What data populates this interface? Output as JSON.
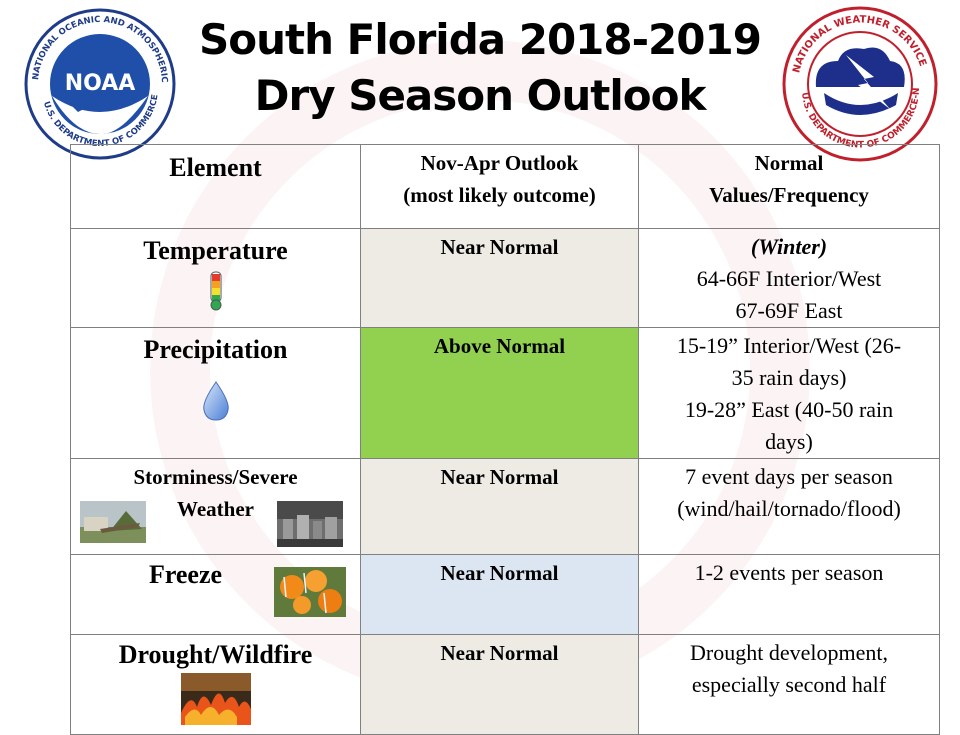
{
  "header": {
    "title_line1": "South Florida 2018-2019",
    "title_line2": "Dry Season Outlook"
  },
  "logos": {
    "left": {
      "icon": "noaa-logo-icon",
      "text": "NATIONAL OCEANIC AND ATMOSPHERIC ADMINISTRATION · U.S. DEPARTMENT OF COMMERCE",
      "center": "NOAA"
    },
    "right": {
      "icon": "nws-logo-icon",
      "text": "NATIONAL WEATHER SERVICE · U.S. DEPARTMENT OF COMMERCE-NOAA"
    }
  },
  "table": {
    "headers": {
      "element": "Element",
      "outlook_line1": "Nov-Apr Outlook",
      "outlook_line2": "(most likely outcome)",
      "normal_line1": "Normal",
      "normal_line2": "Values/Frequency"
    },
    "rows": [
      {
        "element": "Temperature",
        "icon": "thermometer-icon",
        "outlook": "Near Normal",
        "outlook_color": "#eeebe4",
        "normal_lines": [
          "(Winter)",
          "64-66F Interior/West",
          "67-69F East"
        ]
      },
      {
        "element": "Precipitation",
        "icon": "raindrop-icon",
        "outlook": "Above Normal",
        "outlook_color": "#92d050",
        "normal_lines": [
          "15-19” Interior/West (26-",
          "35 rain days)",
          "19-28” East (40-50 rain",
          "days)"
        ]
      },
      {
        "element_line1": "Storminess/Severe",
        "element_line2": "Weather",
        "icon": "storm-damage-photo-icon",
        "outlook": "Near Normal",
        "outlook_color": "#eeebe4",
        "normal_lines": [
          "7 event days per season",
          "(wind/hail/tornado/flood)"
        ]
      },
      {
        "element": "Freeze",
        "icon": "frozen-oranges-photo-icon",
        "outlook": "Near Normal",
        "outlook_color": "#dce6f2",
        "normal_lines": [
          "1-2 events per season"
        ]
      },
      {
        "element": "Drought/Wildfire",
        "icon": "wildfire-photo-icon",
        "outlook": "Near Normal",
        "outlook_color": "#eeebe4",
        "normal_lines": [
          "Drought development,",
          "especially second half"
        ]
      }
    ]
  }
}
